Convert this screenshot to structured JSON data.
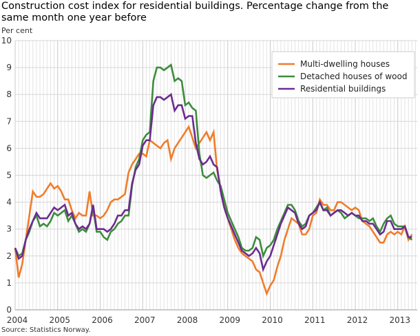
{
  "chart_data": {
    "type": "line",
    "title": "Construction cost index for residential buildings. Percentage change from the same month one year before",
    "ylabel": "Per cent",
    "xlabel": "",
    "ylim": [
      0,
      10
    ],
    "yticks": [
      "0",
      "1",
      "2",
      "3",
      "4",
      "5",
      "6",
      "7",
      "8",
      "9",
      "10"
    ],
    "xticks": [
      "2004",
      "2005",
      "2006",
      "2007",
      "2008",
      "2009",
      "2010",
      "2011",
      "2012",
      "2013"
    ],
    "x_start": "2004-01",
    "x_frequency": "monthly",
    "grid": true,
    "legend_position": "top-right",
    "series": [
      {
        "name": "Multi-dwelling houses",
        "color": "#f07c2a",
        "values": [
          2.3,
          1.2,
          1.7,
          2.6,
          3.5,
          4.4,
          4.2,
          4.2,
          4.3,
          4.5,
          4.7,
          4.5,
          4.6,
          4.4,
          4.1,
          4.1,
          3.7,
          3.4,
          3.6,
          3.5,
          3.5,
          4.4,
          3.5,
          3.5,
          3.4,
          3.5,
          3.7,
          4.0,
          4.1,
          4.1,
          4.2,
          4.3,
          5.1,
          5.4,
          5.6,
          5.8,
          5.8,
          5.7,
          6.3,
          6.2,
          6.1,
          6.0,
          6.2,
          6.3,
          5.6,
          6.0,
          6.2,
          6.4,
          6.6,
          6.8,
          6.4,
          6.0,
          6.2,
          6.4,
          6.6,
          6.3,
          6.6,
          5.2,
          4.5,
          3.9,
          3.4,
          3.0,
          2.6,
          2.3,
          2.1,
          2.0,
          1.9,
          1.8,
          1.5,
          1.4,
          1.0,
          0.6,
          0.9,
          1.1,
          1.6,
          2.0,
          2.6,
          3.0,
          3.4,
          3.3,
          3.2,
          2.8,
          2.8,
          3.0,
          3.5,
          3.6,
          4.1,
          3.9,
          3.9,
          3.7,
          3.7,
          4.0,
          4.0,
          3.9,
          3.8,
          3.7,
          3.8,
          3.7,
          3.3,
          3.2,
          3.1,
          2.9,
          2.7,
          2.5,
          2.5,
          2.8,
          2.9,
          2.8,
          2.9,
          2.8,
          3.1,
          2.6,
          2.8
        ]
      },
      {
        "name": "Detached houses of wood",
        "color": "#3d8c3d",
        "values": [
          2.3,
          2.0,
          2.1,
          2.6,
          2.9,
          3.3,
          3.5,
          3.1,
          3.2,
          3.1,
          3.3,
          3.6,
          3.5,
          3.6,
          3.7,
          3.3,
          3.5,
          3.2,
          2.9,
          3.0,
          2.9,
          3.2,
          3.8,
          2.9,
          2.9,
          2.7,
          2.6,
          2.9,
          3.0,
          3.2,
          3.3,
          3.5,
          3.5,
          4.6,
          5.3,
          5.6,
          6.3,
          6.5,
          6.6,
          8.5,
          9.0,
          9.0,
          8.9,
          9.0,
          9.1,
          8.5,
          8.6,
          8.5,
          7.6,
          7.7,
          7.5,
          7.4,
          5.8,
          5.0,
          4.9,
          5.0,
          5.1,
          4.8,
          4.6,
          4.1,
          3.6,
          3.3,
          3.0,
          2.7,
          2.3,
          2.2,
          2.2,
          2.3,
          2.7,
          2.6,
          2.0,
          2.3,
          2.4,
          2.6,
          3.0,
          3.3,
          3.6,
          3.9,
          3.9,
          3.7,
          3.3,
          3.1,
          3.2,
          3.5,
          3.6,
          3.8,
          4.0,
          3.7,
          3.8,
          3.5,
          3.6,
          3.7,
          3.6,
          3.4,
          3.5,
          3.6,
          3.5,
          3.4,
          3.4,
          3.4,
          3.3,
          3.4,
          3.1,
          2.9,
          3.2,
          3.4,
          3.5,
          3.2,
          3.1,
          3.1,
          3.1,
          2.7,
          2.6
        ]
      },
      {
        "name": "Residential buildings",
        "color": "#6b2c8f",
        "values": [
          2.3,
          1.9,
          2.0,
          2.6,
          3.0,
          3.3,
          3.6,
          3.4,
          3.4,
          3.4,
          3.6,
          3.8,
          3.7,
          3.8,
          3.9,
          3.5,
          3.6,
          3.2,
          3.0,
          3.1,
          3.0,
          3.2,
          3.9,
          3.0,
          3.0,
          3.0,
          2.9,
          3.0,
          3.2,
          3.5,
          3.5,
          3.7,
          3.7,
          4.7,
          5.2,
          5.4,
          6.1,
          6.3,
          6.3,
          7.6,
          7.9,
          7.9,
          7.8,
          7.9,
          8.0,
          7.4,
          7.6,
          7.6,
          7.1,
          7.2,
          7.2,
          6.2,
          5.6,
          5.4,
          5.5,
          5.7,
          5.4,
          5.3,
          4.4,
          3.8,
          3.4,
          3.1,
          2.8,
          2.5,
          2.2,
          2.1,
          2.0,
          2.1,
          2.3,
          2.1,
          1.5,
          1.8,
          2.0,
          2.4,
          2.8,
          3.2,
          3.5,
          3.8,
          3.7,
          3.6,
          3.2,
          3.0,
          3.1,
          3.5,
          3.6,
          3.7,
          4.0,
          3.7,
          3.7,
          3.5,
          3.6,
          3.7,
          3.7,
          3.6,
          3.5,
          3.6,
          3.5,
          3.5,
          3.3,
          3.3,
          3.2,
          3.2,
          3.0,
          2.8,
          2.9,
          3.3,
          3.3,
          3.0,
          3.0,
          3.0,
          3.1,
          2.7,
          2.7
        ]
      }
    ],
    "source": "Source: Statistics Norway."
  }
}
